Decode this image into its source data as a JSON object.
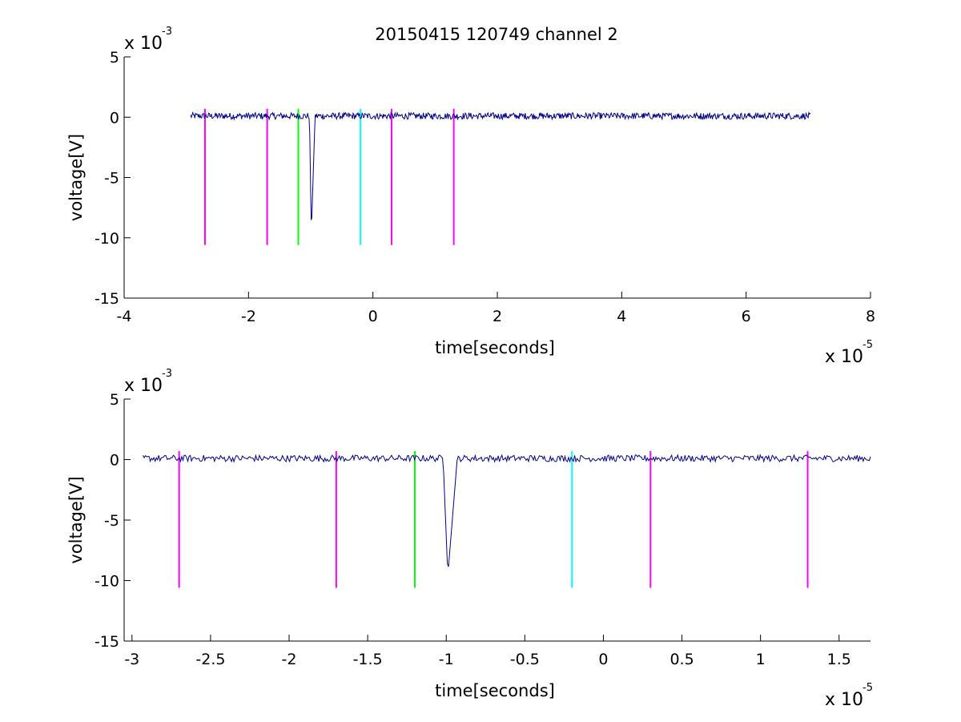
{
  "title": "20150415 120749 channel 2",
  "colors": {
    "signal": "#00008B",
    "magenta": "#FF00FF",
    "green": "#00FF00",
    "cyan": "#00FFFF",
    "axis": "#000000"
  },
  "chart_data": [
    {
      "type": "line",
      "panel": "top",
      "xlabel": "time[seconds]",
      "ylabel": "voltage[V]",
      "x_multiplier_label": "x 10",
      "x_multiplier_exp": "-5",
      "y_multiplier_label": "x 10",
      "y_multiplier_exp": "-3",
      "xlim": [
        -4,
        8
      ],
      "ylim": [
        -15,
        5
      ],
      "xticks": [
        -4,
        -2,
        0,
        2,
        4,
        6,
        8
      ],
      "xtick_labels": [
        "-4",
        "-2",
        "0",
        "2",
        "4",
        "6",
        "8"
      ],
      "yticks": [
        -15,
        -10,
        -5,
        0,
        5
      ],
      "ytick_labels": [
        "-15",
        "-10",
        "-5",
        "0",
        "5"
      ],
      "series": [
        {
          "color": "signal",
          "baseline": 0.1,
          "x_range": [
            -2.93,
            7.03
          ],
          "dip": {
            "start": -1.02,
            "min_x": -0.99,
            "end": -0.93,
            "min_y": -9.6
          }
        }
      ],
      "markers": [
        {
          "x": -2.7,
          "color": "magenta",
          "y_top": 0.7,
          "y_bottom": -10.6
        },
        {
          "x": -1.7,
          "color": "magenta",
          "y_top": 0.7,
          "y_bottom": -10.6
        },
        {
          "x": -1.2,
          "color": "green",
          "y_top": 0.7,
          "y_bottom": -10.6
        },
        {
          "x": -0.2,
          "color": "cyan",
          "y_top": 0.7,
          "y_bottom": -10.6
        },
        {
          "x": 0.3,
          "color": "magenta",
          "y_top": 0.7,
          "y_bottom": -10.6
        },
        {
          "x": 1.3,
          "color": "magenta",
          "y_top": 0.7,
          "y_bottom": -10.6
        }
      ]
    },
    {
      "type": "line",
      "panel": "bottom",
      "xlabel": "time[seconds]",
      "ylabel": "voltage[V]",
      "x_multiplier_label": "x 10",
      "x_multiplier_exp": "-5",
      "y_multiplier_label": "x 10",
      "y_multiplier_exp": "-3",
      "xlim": [
        -3.05,
        1.7
      ],
      "ylim": [
        -15,
        5
      ],
      "xticks": [
        -3,
        -2.5,
        -2,
        -1.5,
        -1,
        -0.5,
        0,
        0.5,
        1,
        1.5
      ],
      "xtick_labels": [
        "-3",
        "-2.5",
        "-2",
        "-1.5",
        "-1",
        "-0.5",
        "0",
        "0.5",
        "1",
        "1.5"
      ],
      "yticks": [
        -15,
        -10,
        -5,
        0,
        5
      ],
      "ytick_labels": [
        "-15",
        "-10",
        "-5",
        "0",
        "5"
      ],
      "series": [
        {
          "color": "signal",
          "baseline": 0.1,
          "x_range": [
            -2.93,
            1.7
          ],
          "dip": {
            "start": -1.02,
            "min_x": -0.99,
            "end": -0.93,
            "min_y": -9.6
          }
        }
      ],
      "markers": [
        {
          "x": -2.7,
          "color": "magenta",
          "y_top": 0.7,
          "y_bottom": -10.6
        },
        {
          "x": -1.7,
          "color": "magenta",
          "y_top": 0.7,
          "y_bottom": -10.6
        },
        {
          "x": -1.2,
          "color": "green",
          "y_top": 0.7,
          "y_bottom": -10.6
        },
        {
          "x": -0.2,
          "color": "cyan",
          "y_top": 0.7,
          "y_bottom": -10.6
        },
        {
          "x": 0.3,
          "color": "magenta",
          "y_top": 0.7,
          "y_bottom": -10.6
        },
        {
          "x": 1.3,
          "color": "magenta",
          "y_top": 0.7,
          "y_bottom": -10.6
        }
      ]
    }
  ]
}
